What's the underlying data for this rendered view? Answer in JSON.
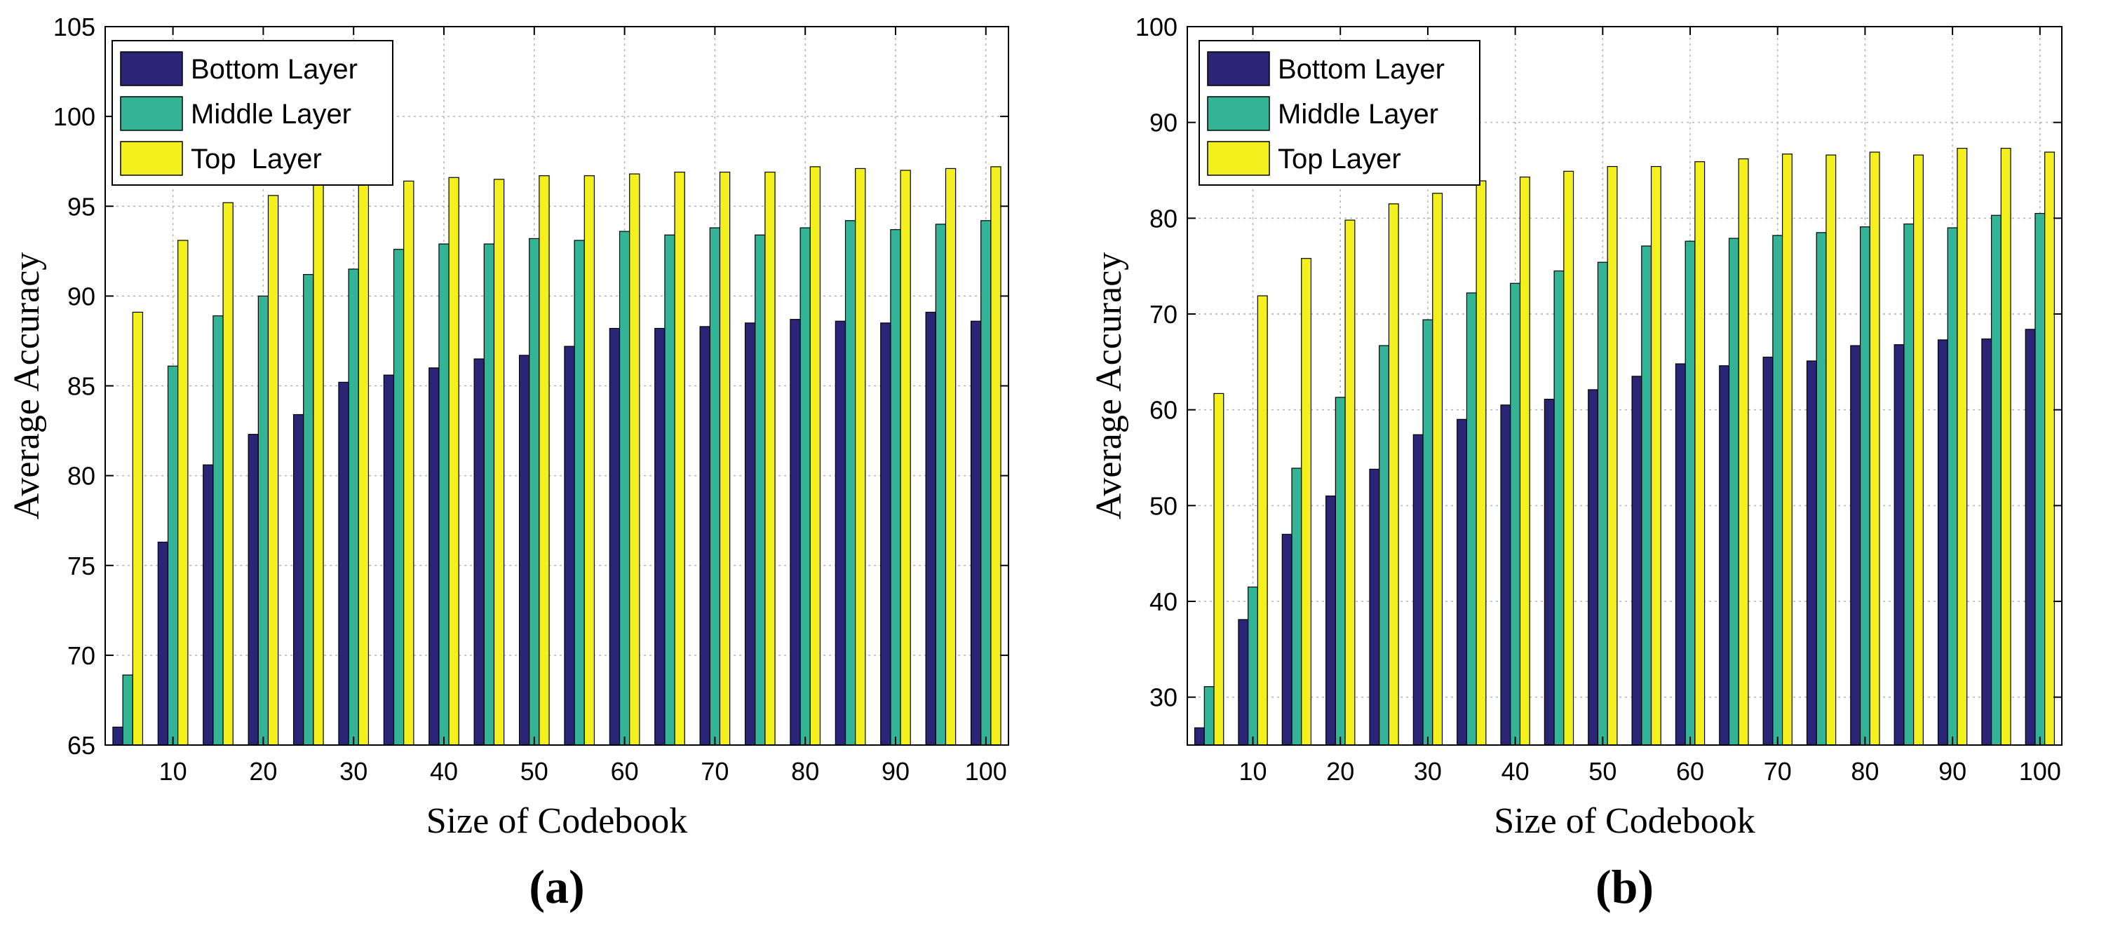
{
  "colors": {
    "bottom": "#2b2577",
    "middle": "#33b497",
    "top": "#f4f01d",
    "grid": "#b4b4b4",
    "axis": "#000000"
  },
  "chart_data": [
    {
      "type": "bar",
      "panel_label": "(a)",
      "xlabel": "Size of Codebook",
      "ylabel": "Average Accuracy",
      "categories": [
        5,
        10,
        15,
        20,
        25,
        30,
        35,
        40,
        45,
        50,
        55,
        60,
        65,
        70,
        75,
        80,
        85,
        90,
        95,
        100
      ],
      "xticks": [
        10,
        20,
        30,
        40,
        50,
        60,
        70,
        80,
        90,
        100
      ],
      "ylim": [
        65,
        105
      ],
      "yticks": [
        65,
        70,
        75,
        80,
        85,
        90,
        95,
        100,
        105
      ],
      "grid": true,
      "legend_position": "top-left",
      "series": [
        {
          "name": "Bottom Layer",
          "color_key": "bottom",
          "values": [
            66.0,
            76.3,
            80.6,
            82.3,
            83.4,
            85.2,
            85.6,
            86.0,
            86.5,
            86.7,
            87.2,
            88.2,
            88.2,
            88.3,
            88.5,
            88.7,
            88.6,
            88.5,
            89.1,
            88.6
          ]
        },
        {
          "name": "Middle Layer",
          "color_key": "middle",
          "values": [
            68.9,
            86.1,
            88.9,
            90.0,
            91.2,
            91.5,
            92.6,
            92.9,
            92.9,
            93.2,
            93.1,
            93.6,
            93.4,
            93.8,
            93.4,
            93.8,
            94.2,
            93.7,
            94.0,
            94.2
          ]
        },
        {
          "name": "Top  Layer",
          "color_key": "top",
          "values": [
            89.1,
            93.1,
            95.2,
            95.6,
            96.3,
            96.4,
            96.4,
            96.6,
            96.5,
            96.7,
            96.7,
            96.8,
            96.9,
            96.9,
            96.9,
            97.2,
            97.1,
            97.0,
            97.1,
            97.2
          ]
        }
      ]
    },
    {
      "type": "bar",
      "panel_label": "(b)",
      "xlabel": "Size of Codebook",
      "ylabel": "Average Accuracy",
      "categories": [
        5,
        10,
        15,
        20,
        25,
        30,
        35,
        40,
        45,
        50,
        55,
        60,
        65,
        70,
        75,
        80,
        85,
        90,
        95,
        100
      ],
      "xticks": [
        10,
        20,
        30,
        40,
        50,
        60,
        70,
        80,
        90,
        100
      ],
      "ylim": [
        25,
        100
      ],
      "yticks": [
        30,
        40,
        50,
        60,
        70,
        80,
        90,
        100
      ],
      "grid": true,
      "legend_position": "top-left",
      "series": [
        {
          "name": "Bottom Layer",
          "color_key": "bottom",
          "values": [
            26.8,
            38.1,
            47.0,
            51.0,
            53.8,
            57.4,
            59.0,
            60.5,
            61.1,
            62.1,
            63.5,
            64.8,
            64.6,
            65.5,
            65.1,
            66.7,
            66.8,
            67.3,
            67.4,
            68.4
          ]
        },
        {
          "name": "Middle Layer",
          "color_key": "middle",
          "values": [
            31.1,
            41.5,
            53.9,
            61.3,
            66.7,
            69.4,
            72.2,
            73.2,
            74.5,
            75.4,
            77.1,
            77.6,
            77.9,
            78.2,
            78.5,
            79.1,
            79.4,
            79.0,
            80.3,
            80.5
          ]
        },
        {
          "name": "Top Layer",
          "color_key": "top",
          "values": [
            61.7,
            71.9,
            75.8,
            79.8,
            81.5,
            82.6,
            83.9,
            84.3,
            84.9,
            85.4,
            85.4,
            85.9,
            86.2,
            86.7,
            86.6,
            86.9,
            86.6,
            87.3,
            87.3,
            86.9
          ]
        }
      ]
    }
  ]
}
